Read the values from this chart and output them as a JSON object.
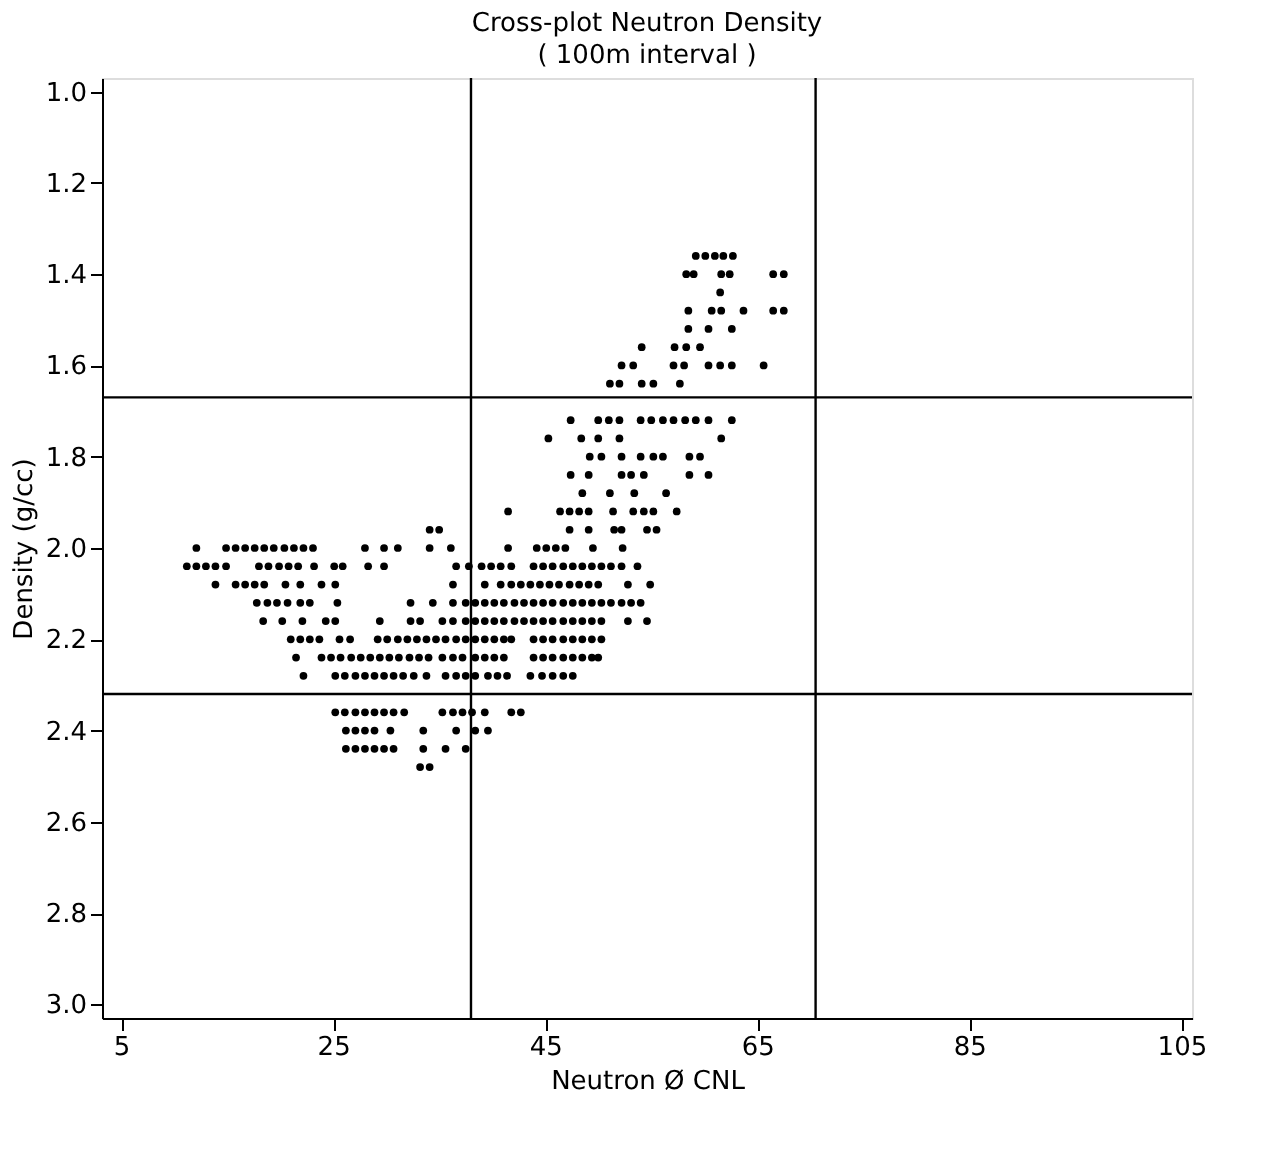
{
  "chart_data": {
    "type": "scatter",
    "title": "Cross-plot Neutron Density",
    "subtitle": "( 100m interval )",
    "xlabel": "Neutron Ø CNL",
    "ylabel": "Density (g/cc)",
    "xlim": [
      3.2,
      106
    ],
    "ylim": [
      3.03,
      0.97
    ],
    "xticks": [
      5,
      25,
      45,
      65,
      85,
      105
    ],
    "yticks": [
      {
        "value": 1.0,
        "label": "1.0"
      },
      1.2,
      1.4,
      1.6,
      1.8,
      {
        "value": 2.0,
        "label": "2.0"
      },
      2.2,
      2.4,
      2.6,
      2.8,
      {
        "value": 3.0,
        "label": "3.0"
      }
    ],
    "grid": false,
    "legend": false,
    "marker": "circle",
    "ref_lines": [
      {
        "axis": "x",
        "value": 38,
        "color": "#000000"
      },
      {
        "axis": "x",
        "value": 70.5,
        "color": "#000000"
      },
      {
        "axis": "y",
        "value": 1.67,
        "color": "#000000"
      },
      {
        "axis": "y",
        "value": 2.32,
        "color": "#000000"
      }
    ],
    "series": [
      {
        "color": "#000000",
        "x": [
          59.2,
          60.1,
          61.0,
          61.8,
          62.7
        ],
        "values": [
          1.36,
          1.36,
          1.36,
          1.36,
          1.36
        ]
      },
      {
        "color": "#000000",
        "x": [
          58.3,
          59.0,
          61.6,
          62.4,
          66.5,
          67.5
        ],
        "values": [
          1.4,
          1.4,
          1.4,
          1.4,
          1.4,
          1.4
        ]
      },
      {
        "color": "#000000",
        "x": [
          61.5
        ],
        "values": [
          1.44
        ]
      },
      {
        "color": "#000000",
        "x": [
          58.5,
          60.7,
          61.6,
          63.7,
          66.5,
          67.5
        ],
        "values": [
          1.48,
          1.48,
          1.48,
          1.48,
          1.48,
          1.48
        ]
      },
      {
        "color": "#000000",
        "x": [
          58.5,
          60.4,
          62.6
        ],
        "values": [
          1.52,
          1.52,
          1.52
        ]
      },
      {
        "color": "#000000",
        "x": [
          54.1,
          57.2,
          58.3,
          59.6
        ],
        "values": [
          1.56,
          1.56,
          1.56,
          1.56
        ]
      },
      {
        "color": "#000000",
        "x": [
          52.2,
          53.3,
          57.1,
          58.1,
          60.4,
          61.5,
          62.6,
          65.6
        ],
        "values": [
          1.6,
          1.6,
          1.6,
          1.6,
          1.6,
          1.6,
          1.6,
          1.6
        ]
      },
      {
        "color": "#000000",
        "x": [
          51.1,
          52.0,
          54.1,
          55.2,
          57.7
        ],
        "values": [
          1.64,
          1.64,
          1.64,
          1.64,
          1.64
        ]
      },
      {
        "color": "#000000",
        "x": [
          47.4,
          50.0,
          51.0,
          52.0,
          54.0,
          55.0,
          56.1,
          57.1,
          58.2,
          59.2,
          60.4,
          62.6
        ],
        "values": [
          1.72,
          1.72,
          1.72,
          1.72,
          1.72,
          1.72,
          1.72,
          1.72,
          1.72,
          1.72,
          1.72,
          1.72
        ]
      },
      {
        "color": "#000000",
        "x": [
          45.3,
          48.4,
          50.0,
          52.0,
          61.6
        ],
        "values": [
          1.76,
          1.76,
          1.76,
          1.76,
          1.76
        ]
      },
      {
        "color": "#000000",
        "x": [
          49.2,
          50.3,
          52.2,
          54.0,
          55.2,
          56.1,
          58.6,
          59.6
        ],
        "values": [
          1.8,
          1.8,
          1.8,
          1.8,
          1.8,
          1.8,
          1.8,
          1.8
        ]
      },
      {
        "color": "#000000",
        "x": [
          47.4,
          49.1,
          52.2,
          53.1,
          54.3,
          58.6,
          60.4
        ],
        "values": [
          1.84,
          1.84,
          1.84,
          1.84,
          1.84,
          1.84,
          1.84
        ]
      },
      {
        "color": "#000000",
        "x": [
          48.5,
          51.1,
          53.4,
          56.4
        ],
        "values": [
          1.88,
          1.88,
          1.88,
          1.88
        ]
      },
      {
        "color": "#000000",
        "x": [
          41.5,
          46.4,
          47.3,
          48.2,
          49.1,
          51.4,
          53.3,
          54.3,
          55.2,
          57.4
        ],
        "values": [
          1.92,
          1.92,
          1.92,
          1.92,
          1.92,
          1.92,
          1.92,
          1.92,
          1.92,
          1.92
        ]
      },
      {
        "color": "#000000",
        "x": [
          34.1,
          35.0,
          47.3,
          49.1,
          51.5,
          52.2,
          54.6,
          55.5
        ],
        "values": [
          1.96,
          1.96,
          1.96,
          1.96,
          1.96,
          1.96,
          1.96,
          1.96
        ]
      },
      {
        "color": "#000000",
        "x": [
          12.1,
          14.9,
          15.8,
          16.7,
          17.6,
          18.5,
          19.4,
          20.4,
          21.3,
          22.2,
          23.1,
          28.0,
          29.8,
          31.1,
          34.1,
          36.1,
          41.5,
          44.2,
          45.1,
          46.0,
          46.9,
          49.5,
          52.3
        ],
        "values": [
          2.0,
          2.0,
          2.0,
          2.0,
          2.0,
          2.0,
          2.0,
          2.0,
          2.0,
          2.0,
          2.0,
          2.0,
          2.0,
          2.0,
          2.0,
          2.0,
          2.0,
          2.0,
          2.0,
          2.0,
          2.0,
          2.0,
          2.0
        ]
      },
      {
        "color": "#000000",
        "x": [
          11.2,
          12.1,
          13.0,
          13.9,
          14.9,
          18.0,
          18.9,
          19.9,
          20.8,
          21.7,
          23.2,
          25.1,
          25.9,
          28.3,
          29.8,
          36.6,
          37.8,
          39.0,
          39.9,
          40.8,
          41.8,
          43.9,
          44.8,
          45.7,
          46.7,
          47.6,
          48.5,
          49.4,
          50.3,
          51.2,
          52.2,
          53.7
        ],
        "values": [
          2.04,
          2.04,
          2.04,
          2.04,
          2.04,
          2.04,
          2.04,
          2.04,
          2.04,
          2.04,
          2.04,
          2.04,
          2.04,
          2.04,
          2.04,
          2.04,
          2.04,
          2.04,
          2.04,
          2.04,
          2.04,
          2.04,
          2.04,
          2.04,
          2.04,
          2.04,
          2.04,
          2.04,
          2.04,
          2.04,
          2.04,
          2.04
        ]
      },
      {
        "color": "#000000",
        "x": [
          13.9,
          15.8,
          16.7,
          17.6,
          18.5,
          20.5,
          21.9,
          23.9,
          25.2,
          36.3,
          39.3,
          40.8,
          41.8,
          42.7,
          43.6,
          44.5,
          45.4,
          46.3,
          47.3,
          48.2,
          49.1,
          50.0,
          52.8,
          54.9
        ],
        "values": [
          2.08,
          2.08,
          2.08,
          2.08,
          2.08,
          2.08,
          2.08,
          2.08,
          2.08,
          2.08,
          2.08,
          2.08,
          2.08,
          2.08,
          2.08,
          2.08,
          2.08,
          2.08,
          2.08,
          2.08,
          2.08,
          2.08,
          2.08,
          2.08
        ]
      },
      {
        "color": "#000000",
        "x": [
          17.8,
          18.8,
          19.7,
          20.7,
          21.9,
          22.8,
          25.4,
          32.3,
          34.4,
          36.3,
          37.5,
          38.4,
          39.3,
          40.2,
          41.1,
          42.1,
          43.0,
          43.9,
          44.8,
          45.7,
          46.7,
          47.6,
          48.5,
          49.4,
          50.3,
          51.2,
          52.2,
          53.1,
          54.0
        ],
        "values": [
          2.12,
          2.12,
          2.12,
          2.12,
          2.12,
          2.12,
          2.12,
          2.12,
          2.12,
          2.12,
          2.12,
          2.12,
          2.12,
          2.12,
          2.12,
          2.12,
          2.12,
          2.12,
          2.12,
          2.12,
          2.12,
          2.12,
          2.12,
          2.12,
          2.12,
          2.12,
          2.12,
          2.12,
          2.12
        ]
      },
      {
        "color": "#000000",
        "x": [
          18.4,
          20.2,
          22.1,
          24.3,
          25.2,
          29.4,
          32.3,
          33.2,
          35.3,
          36.3,
          37.5,
          38.4,
          39.3,
          40.2,
          41.1,
          42.1,
          43.0,
          43.9,
          44.8,
          45.7,
          46.7,
          47.6,
          48.5,
          49.4,
          50.3,
          52.8,
          54.6
        ],
        "values": [
          2.16,
          2.16,
          2.16,
          2.16,
          2.16,
          2.16,
          2.16,
          2.16,
          2.16,
          2.16,
          2.16,
          2.16,
          2.16,
          2.16,
          2.16,
          2.16,
          2.16,
          2.16,
          2.16,
          2.16,
          2.16,
          2.16,
          2.16,
          2.16,
          2.16,
          2.16,
          2.16
        ]
      },
      {
        "color": "#000000",
        "x": [
          21.0,
          21.9,
          22.8,
          23.7,
          25.6,
          26.6,
          29.2,
          30.1,
          31.1,
          32.0,
          32.9,
          33.8,
          34.7,
          35.6,
          36.6,
          37.5,
          38.4,
          39.3,
          40.2,
          41.1,
          41.8,
          43.9,
          44.8,
          45.7,
          46.7,
          47.6,
          48.5,
          49.4,
          50.3
        ],
        "values": [
          2.2,
          2.2,
          2.2,
          2.2,
          2.2,
          2.2,
          2.2,
          2.2,
          2.2,
          2.2,
          2.2,
          2.2,
          2.2,
          2.2,
          2.2,
          2.2,
          2.2,
          2.2,
          2.2,
          2.2,
          2.2,
          2.2,
          2.2,
          2.2,
          2.2,
          2.2,
          2.2,
          2.2,
          2.2
        ]
      },
      {
        "color": "#000000",
        "x": [
          21.5,
          23.9,
          24.8,
          25.7,
          26.7,
          27.6,
          28.5,
          29.4,
          30.3,
          31.2,
          32.2,
          33.1,
          34.0,
          35.3,
          36.3,
          37.2,
          38.4,
          39.3,
          40.2,
          41.1,
          43.9,
          44.8,
          45.7,
          46.7,
          47.6,
          48.5,
          49.4,
          50.0
        ],
        "values": [
          2.24,
          2.24,
          2.24,
          2.24,
          2.24,
          2.24,
          2.24,
          2.24,
          2.24,
          2.24,
          2.24,
          2.24,
          2.24,
          2.24,
          2.24,
          2.24,
          2.24,
          2.24,
          2.24,
          2.24,
          2.24,
          2.24,
          2.24,
          2.24,
          2.24,
          2.24,
          2.24,
          2.24
        ]
      },
      {
        "color": "#000000",
        "x": [
          22.2,
          25.2,
          26.1,
          27.1,
          28.0,
          28.9,
          29.8,
          30.7,
          31.6,
          32.6,
          33.8,
          35.6,
          36.6,
          37.5,
          38.4,
          39.6,
          40.5,
          41.4,
          43.6,
          44.7,
          45.7,
          46.7,
          47.6
        ],
        "values": [
          2.28,
          2.28,
          2.28,
          2.28,
          2.28,
          2.28,
          2.28,
          2.28,
          2.28,
          2.28,
          2.28,
          2.28,
          2.28,
          2.28,
          2.28,
          2.28,
          2.28,
          2.28,
          2.28,
          2.28,
          2.28,
          2.28,
          2.28
        ]
      },
      {
        "color": "#000000",
        "x": [
          25.2,
          26.1,
          27.1,
          28.0,
          28.9,
          29.8,
          30.7,
          31.7,
          35.3,
          36.3,
          37.2,
          38.1,
          39.3,
          41.8,
          42.7
        ],
        "values": [
          2.36,
          2.36,
          2.36,
          2.36,
          2.36,
          2.36,
          2.36,
          2.36,
          2.36,
          2.36,
          2.36,
          2.36,
          2.36,
          2.36,
          2.36
        ]
      },
      {
        "color": "#000000",
        "x": [
          26.2,
          27.1,
          28.0,
          28.9,
          30.4,
          33.5,
          36.6,
          38.4,
          39.6
        ],
        "values": [
          2.4,
          2.4,
          2.4,
          2.4,
          2.4,
          2.4,
          2.4,
          2.4,
          2.4
        ]
      },
      {
        "color": "#000000",
        "x": [
          26.2,
          27.1,
          28.0,
          28.9,
          29.8,
          30.7,
          33.5,
          35.6,
          37.5
        ],
        "values": [
          2.44,
          2.44,
          2.44,
          2.44,
          2.44,
          2.44,
          2.44,
          2.44,
          2.44
        ]
      },
      {
        "color": "#000000",
        "x": [
          33.2,
          34.1
        ],
        "values": [
          2.48,
          2.48
        ]
      }
    ]
  }
}
